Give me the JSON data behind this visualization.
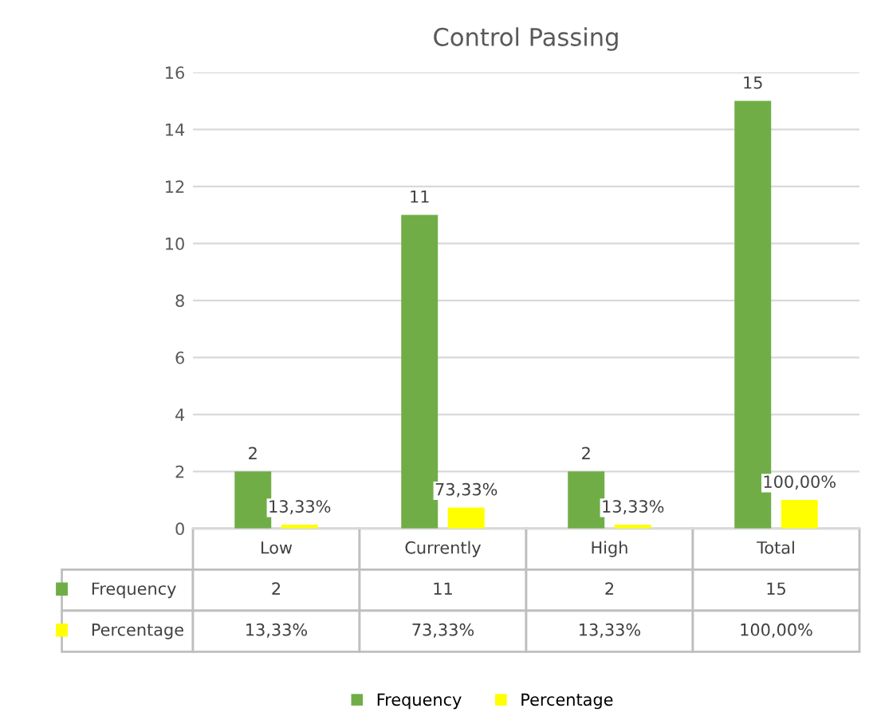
{
  "chart_data": {
    "type": "bar",
    "title": "Control Passing",
    "categories": [
      "Low",
      "Currently",
      "High",
      "Total"
    ],
    "series": [
      {
        "name": "Frequency",
        "color": "#70ad47",
        "values": [
          2,
          11,
          2,
          15
        ],
        "value_labels": [
          "2",
          "11",
          "2",
          "15"
        ]
      },
      {
        "name": "Percentage",
        "color": "#ffff00",
        "values": [
          0.1333,
          0.7333,
          0.1333,
          1.0
        ],
        "value_labels": [
          "13,33%",
          "73,33%",
          "13,33%",
          "100,00%"
        ]
      }
    ],
    "ylim": [
      0,
      16
    ],
    "yticks": [
      0,
      2,
      4,
      6,
      8,
      10,
      12,
      14,
      16
    ],
    "grid": "y",
    "legend": "bottom"
  }
}
